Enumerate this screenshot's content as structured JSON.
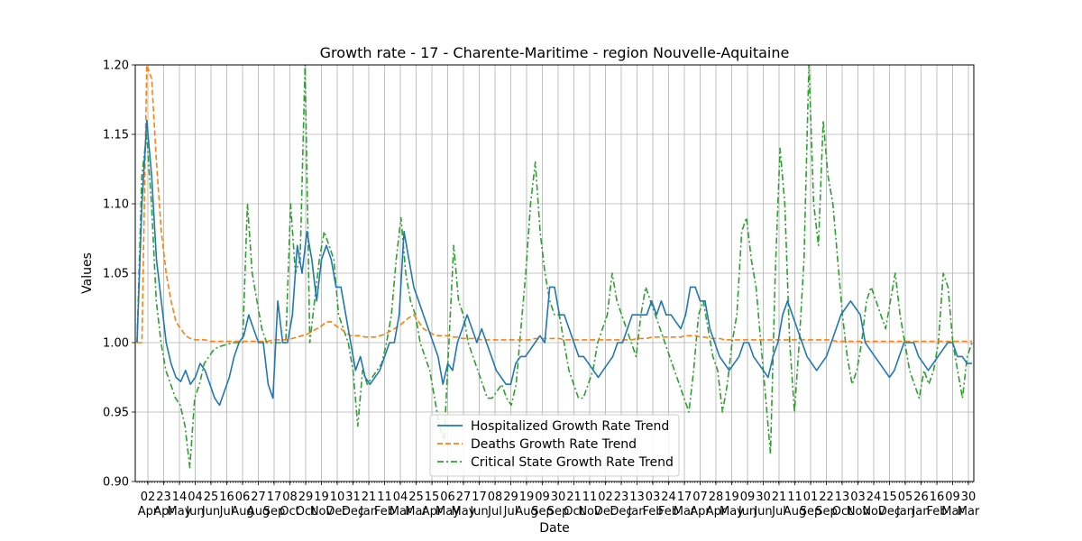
{
  "chart_data": {
    "type": "line",
    "title": "Growth rate - 17 - Charente-Maritime - region Nouvelle-Aquitaine",
    "xlabel": "Date",
    "ylabel": "Values",
    "ylim": [
      0.9,
      1.2
    ],
    "yticks": [
      "0.90",
      "0.95",
      "1.00",
      "1.05",
      "1.10",
      "1.15",
      "1.20"
    ],
    "grid": true,
    "legend_position": "lower center",
    "xticks": [
      {
        "day": "02",
        "month": "Apr"
      },
      {
        "day": "23",
        "month": "Apr"
      },
      {
        "day": "14",
        "month": "May"
      },
      {
        "day": "04",
        "month": "Jun"
      },
      {
        "day": "25",
        "month": "Jun"
      },
      {
        "day": "16",
        "month": "Jul"
      },
      {
        "day": "06",
        "month": "Aug"
      },
      {
        "day": "27",
        "month": "Aug"
      },
      {
        "day": "17",
        "month": "Sep"
      },
      {
        "day": "08",
        "month": "Oct"
      },
      {
        "day": "29",
        "month": "Oct"
      },
      {
        "day": "19",
        "month": "Nov"
      },
      {
        "day": "10",
        "month": "Dec"
      },
      {
        "day": "31",
        "month": "Dec"
      },
      {
        "day": "21",
        "month": "Jan"
      },
      {
        "day": "11",
        "month": "Feb"
      },
      {
        "day": "04",
        "month": "Mar"
      },
      {
        "day": "25",
        "month": "Mar"
      },
      {
        "day": "15",
        "month": "Apr"
      },
      {
        "day": "06",
        "month": "May"
      },
      {
        "day": "27",
        "month": "May"
      },
      {
        "day": "17",
        "month": "Jun"
      },
      {
        "day": "08",
        "month": "Jul"
      },
      {
        "day": "29",
        "month": "Jul"
      },
      {
        "day": "19",
        "month": "Aug"
      },
      {
        "day": "09",
        "month": "Sep"
      },
      {
        "day": "30",
        "month": "Sep"
      },
      {
        "day": "21",
        "month": "Oct"
      },
      {
        "day": "11",
        "month": "Nov"
      },
      {
        "day": "02",
        "month": "Dec"
      },
      {
        "day": "23",
        "month": "Dec"
      },
      {
        "day": "13",
        "month": "Jan"
      },
      {
        "day": "03",
        "month": "Feb"
      },
      {
        "day": "24",
        "month": "Feb"
      },
      {
        "day": "17",
        "month": "Mar"
      },
      {
        "day": "07",
        "month": "Apr"
      },
      {
        "day": "28",
        "month": "Apr"
      },
      {
        "day": "19",
        "month": "May"
      },
      {
        "day": "09",
        "month": "Jun"
      },
      {
        "day": "30",
        "month": "Jun"
      },
      {
        "day": "21",
        "month": "Jul"
      },
      {
        "day": "11",
        "month": "Aug"
      },
      {
        "day": "01",
        "month": "Sep"
      },
      {
        "day": "22",
        "month": "Sep"
      },
      {
        "day": "13",
        "month": "Oct"
      },
      {
        "day": "03",
        "month": "Nov"
      },
      {
        "day": "24",
        "month": "Nov"
      },
      {
        "day": "15",
        "month": "Dec"
      },
      {
        "day": "05",
        "month": "Jan"
      },
      {
        "day": "26",
        "month": "Jan"
      },
      {
        "day": "16",
        "month": "Feb"
      },
      {
        "day": "09",
        "month": "Mar"
      },
      {
        "day": "30",
        "month": "Mar"
      }
    ],
    "series": [
      {
        "name": "Hospitalized Growth Rate Trend",
        "color": "#1f77b4",
        "style": "solid",
        "values": [
          1.0,
          1.1,
          1.16,
          1.12,
          1.06,
          1.03,
          1.0,
          0.985,
          0.975,
          0.972,
          0.98,
          0.97,
          0.975,
          0.985,
          0.98,
          0.97,
          0.96,
          0.955,
          0.965,
          0.975,
          0.99,
          1.0,
          1.005,
          1.02,
          1.01,
          1.0,
          1.0,
          0.97,
          0.96,
          1.03,
          1.0,
          1.0,
          1.02,
          1.07,
          1.05,
          1.08,
          1.06,
          1.03,
          1.06,
          1.07,
          1.06,
          1.04,
          1.04,
          1.02,
          1.0,
          0.98,
          0.99,
          0.975,
          0.97,
          0.975,
          0.98,
          0.99,
          1.0,
          1.0,
          1.02,
          1.08,
          1.06,
          1.04,
          1.03,
          1.02,
          1.01,
          1.0,
          0.99,
          0.97,
          0.985,
          0.98,
          1.0,
          1.01,
          1.02,
          1.01,
          1.0,
          1.01,
          1.0,
          0.99,
          0.98,
          0.975,
          0.97,
          0.97,
          0.985,
          0.99,
          0.99,
          0.995,
          1.0,
          1.005,
          1.0,
          1.04,
          1.04,
          1.02,
          1.02,
          1.01,
          1.0,
          0.99,
          0.99,
          0.985,
          0.98,
          0.975,
          0.98,
          0.985,
          0.99,
          1.0,
          1.0,
          1.01,
          1.02,
          1.02,
          1.02,
          1.02,
          1.03,
          1.02,
          1.03,
          1.02,
          1.02,
          1.015,
          1.01,
          1.02,
          1.04,
          1.04,
          1.03,
          1.03,
          1.01,
          1.0,
          0.99,
          0.985,
          0.98,
          0.985,
          0.99,
          1.0,
          1.0,
          0.99,
          0.985,
          0.98,
          0.975,
          0.99,
          1.0,
          1.02,
          1.03,
          1.02,
          1.01,
          1.0,
          0.99,
          0.985,
          0.98,
          0.985,
          0.99,
          1.0,
          1.01,
          1.02,
          1.025,
          1.03,
          1.025,
          1.02,
          1.0,
          0.995,
          0.99,
          0.985,
          0.98,
          0.975,
          0.98,
          0.99,
          1.0,
          1.0,
          1.0,
          0.99,
          0.985,
          0.98,
          0.985,
          0.99,
          0.995,
          1.0,
          1.0,
          0.99,
          0.99,
          0.985,
          0.985
        ]
      },
      {
        "name": "Deaths Growth Rate Trend",
        "color": "#ff7f0e",
        "style": "dashed",
        "values": [
          1.0,
          1.0,
          1.2,
          1.19,
          1.13,
          1.08,
          1.05,
          1.03,
          1.015,
          1.01,
          1.005,
          1.003,
          1.002,
          1.002,
          1.002,
          1.001,
          1.001,
          1.001,
          1.001,
          1.001,
          1.001,
          1.001,
          1.001,
          1.001,
          1.001,
          1.001,
          1.001,
          1.001,
          1.002,
          1.002,
          1.002,
          1.002,
          1.003,
          1.004,
          1.005,
          1.006,
          1.008,
          1.01,
          1.012,
          1.015,
          1.015,
          1.012,
          1.01,
          1.007,
          1.005,
          1.005,
          1.005,
          1.004,
          1.004,
          1.004,
          1.005,
          1.006,
          1.008,
          1.01,
          1.012,
          1.015,
          1.018,
          1.02,
          1.015,
          1.01,
          1.008,
          1.006,
          1.005,
          1.005,
          1.005,
          1.004,
          1.004,
          1.003,
          1.003,
          1.003,
          1.003,
          1.002,
          1.002,
          1.002,
          1.002,
          1.002,
          1.002,
          1.002,
          1.002,
          1.002,
          1.002,
          1.002,
          1.003,
          1.003,
          1.003,
          1.003,
          1.003,
          1.003,
          1.002,
          1.002,
          1.002,
          1.002,
          1.002,
          1.002,
          1.002,
          1.002,
          1.002,
          1.002,
          1.002,
          1.002,
          1.002,
          1.002,
          1.002,
          1.003,
          1.003,
          1.003,
          1.004,
          1.004,
          1.004,
          1.004,
          1.004,
          1.004,
          1.004,
          1.005,
          1.005,
          1.005,
          1.004,
          1.004,
          1.003,
          1.003,
          1.003,
          1.002,
          1.002,
          1.002,
          1.002,
          1.002,
          1.002,
          1.002,
          1.002,
          1.002,
          1.002,
          1.002,
          1.002,
          1.002,
          1.002,
          1.002,
          1.002,
          1.002,
          1.002,
          1.002,
          1.002,
          1.002,
          1.002,
          1.002,
          1.001,
          1.001,
          1.001,
          1.001,
          1.001,
          1.001,
          1.001,
          1.001,
          1.001,
          1.001,
          1.001,
          1.001,
          1.001,
          1.001,
          1.001,
          1.001,
          1.001,
          1.001,
          1.001,
          1.001,
          1.001,
          1.001,
          1.001,
          1.001,
          1.001,
          1.001,
          1.001,
          1.001,
          1.001
        ]
      },
      {
        "name": "Critical State Growth Rate Trend",
        "color": "#2ca02c",
        "style": "dashdot",
        "values": [
          1.0,
          1.12,
          1.15,
          1.1,
          1.03,
          1.0,
          0.98,
          0.97,
          0.96,
          0.955,
          0.94,
          0.91,
          0.96,
          0.97,
          0.985,
          0.99,
          0.995,
          0.997,
          0.998,
          0.999,
          1.0,
          1.0,
          1.0,
          1.1,
          1.05,
          1.03,
          1.01,
          1.0,
          1.0,
          1.0,
          1.0,
          1.0,
          1.1,
          1.05,
          1.06,
          1.2,
          1.0,
          1.03,
          1.06,
          1.08,
          1.07,
          1.06,
          1.02,
          1.01,
          1.0,
          0.98,
          0.94,
          0.98,
          0.97,
          0.975,
          0.98,
          0.985,
          1.0,
          1.02,
          1.06,
          1.09,
          1.05,
          1.03,
          1.02,
          1.0,
          0.99,
          0.98,
          0.96,
          0.94,
          0.93,
          1.0,
          1.07,
          1.03,
          1.02,
          1.0,
          0.99,
          0.98,
          0.97,
          0.96,
          0.96,
          0.965,
          0.97,
          0.96,
          0.955,
          0.97,
          1.01,
          1.05,
          1.1,
          1.13,
          1.08,
          1.05,
          1.03,
          1.02,
          1.02,
          1.0,
          0.98,
          0.97,
          0.96,
          0.96,
          0.97,
          0.98,
          1.0,
          1.01,
          1.02,
          1.05,
          1.03,
          1.02,
          1.01,
          1.0,
          0.99,
          1.02,
          1.04,
          1.03,
          1.02,
          1.01,
          1.0,
          0.99,
          0.98,
          0.97,
          0.96,
          0.95,
          0.98,
          1.02,
          1.03,
          1.01,
          0.99,
          0.98,
          0.95,
          0.97,
          1.0,
          1.02,
          1.08,
          1.09,
          1.06,
          1.04,
          1.0,
          0.96,
          0.92,
          1.05,
          1.14,
          1.1,
          1.0,
          0.95,
          1.0,
          1.06,
          1.2,
          1.1,
          1.07,
          1.16,
          1.12,
          1.1,
          1.06,
          1.02,
          0.99,
          0.97,
          0.98,
          1.0,
          1.03,
          1.04,
          1.03,
          1.02,
          1.01,
          1.03,
          1.05,
          1.02,
          1.0,
          0.98,
          0.97,
          0.96,
          0.98,
          0.97,
          0.98,
          1.0,
          1.05,
          1.04,
          1.0,
          0.98,
          0.96,
          0.99,
          1.0
        ]
      }
    ]
  }
}
